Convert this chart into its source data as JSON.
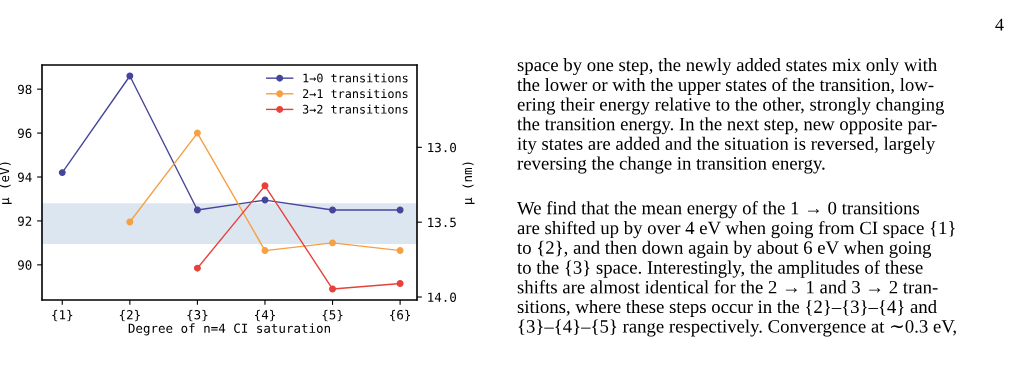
{
  "chart_data": {
    "type": "line",
    "categories": [
      "{1}",
      "{2}",
      "{3}",
      "{4}",
      "{5}",
      "{6}"
    ],
    "xlabel": "Degree of n=4 CI saturation",
    "ylabel": "μ (eV)",
    "y2label": "μ (nm)",
    "series": [
      {
        "name": "1→0 transitions",
        "color": "#45459a",
        "values": [
          94.2,
          98.6,
          92.5,
          92.95,
          92.5,
          92.5
        ]
      },
      {
        "name": "2→1 transitions",
        "color": "#f5a043",
        "values": [
          null,
          91.95,
          96.0,
          90.65,
          91.0,
          90.65
        ]
      },
      {
        "name": "3→2 transitions",
        "color": "#e8403a",
        "values": [
          null,
          null,
          89.85,
          93.6,
          88.9,
          89.15
        ]
      }
    ],
    "ylim": [
      88.4,
      99.1
    ],
    "yticks": [
      90,
      92,
      94,
      96,
      98
    ],
    "y2lim": [
      14.02,
      12.45
    ],
    "y2ticks": [
      {
        "value": 13.0,
        "label": "13.0"
      },
      {
        "value": 13.5,
        "label": "13.5"
      },
      {
        "value": 14.0,
        "label": "14.0"
      }
    ],
    "bands": [
      {
        "axis": "y",
        "from": 90.95,
        "to": 92.8,
        "color": "#dce6f0"
      }
    ],
    "marker": "circle",
    "line_style": "solid",
    "legend": "top right",
    "grid": false,
    "annotations": [
      "4",
      "space by one step, the newly added states mix only with\nthe lower or with the upper states of the transition, low-\nering their energy relative to the other, strongly changing\nthe transition energy. In the next step, new opposite par-\nity states are added and the situation is reversed, largely\nreversing the change in transition energy.",
      "We find that the mean energy of the 1 → 0 transitions\nare shifted up by over 4 eV when going from CI space {1}\nto {2}, and then down again by about 6 eV when going\nto the {3} space. Interestingly, the amplitudes of these\nshifts are almost identical for the 2 → 1 and 3 → 2 tran-\nsitions, where these steps occur in the {2}–{3}–{4} and\n{3}–{4}–{5} range respectively. Convergence at ∼0.3 eV,"
    ]
  }
}
